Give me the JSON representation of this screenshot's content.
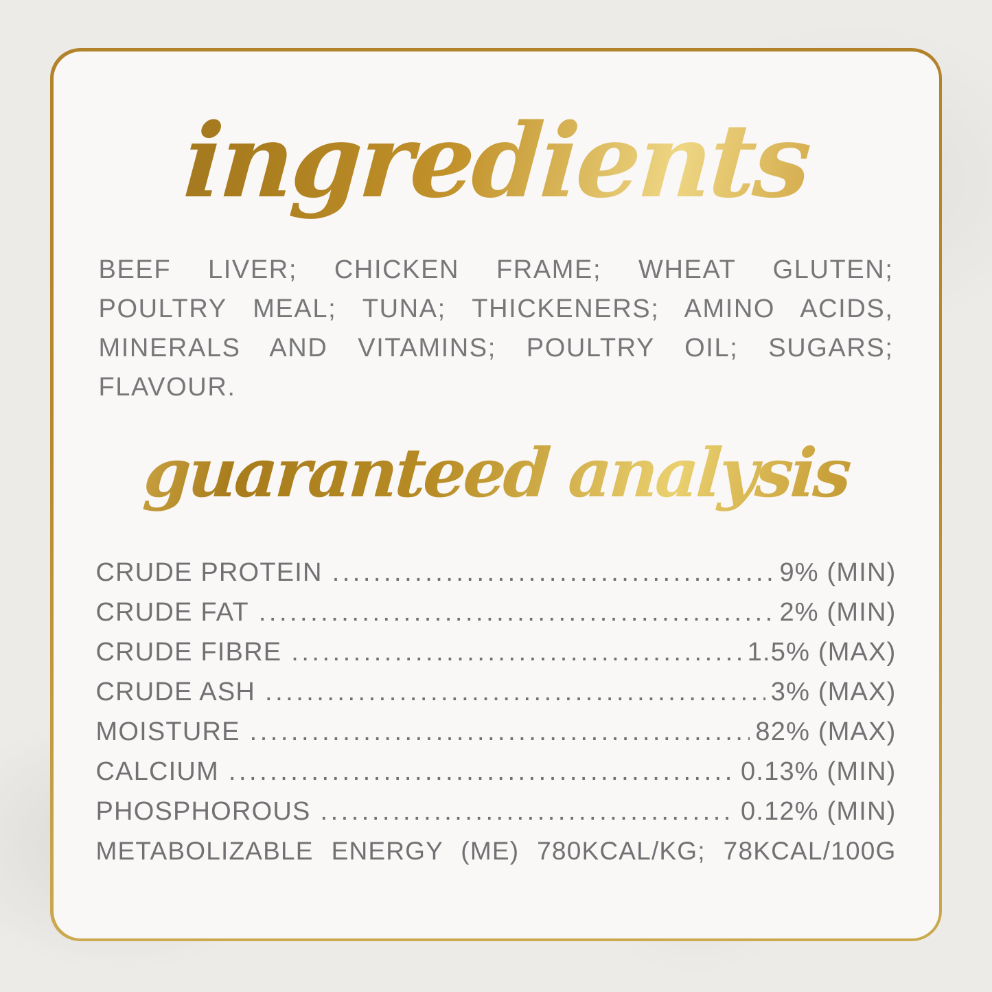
{
  "label": {
    "ingredients_title": "ingredients",
    "ingredients_text": "BEEF LIVER; CHICKEN FRAME; WHEAT GLUTEN; POULTRY MEAL; TUNA; THICKENERS; AMINO ACIDS, MINERALS AND VITAMINS; POULTRY OIL; SUGARS; FLAVOUR.",
    "analysis_title": "guaranteed analysis",
    "analysis_rows": [
      {
        "name": "CRUDE PROTEIN",
        "value": "9% (MIN)"
      },
      {
        "name": "CRUDE FAT",
        "value": "2% (MIN)"
      },
      {
        "name": "CRUDE FIBRE",
        "value": "1.5% (MAX)"
      },
      {
        "name": "CRUDE ASH",
        "value": "3% (MAX)"
      },
      {
        "name": "MOISTURE",
        "value": "82% (MAX)"
      },
      {
        "name": "CALCIUM",
        "value": "0.13% (MIN)"
      },
      {
        "name": "PHOSPHOROUS",
        "value": "0.12% (MIN)"
      }
    ],
    "energy_row": "METABOLIZABLE ENERGY (ME) 780KCAL/KG; 78KCAL/100G"
  },
  "colors": {
    "accent_gold": "#B8872E",
    "gold_light": "#EED683",
    "border_top": "#B2832A",
    "border_bottom": "#CBA94F",
    "text_gray": "#717174",
    "card_background": "#F9F8F6",
    "page_background": "#EDEBE8"
  }
}
